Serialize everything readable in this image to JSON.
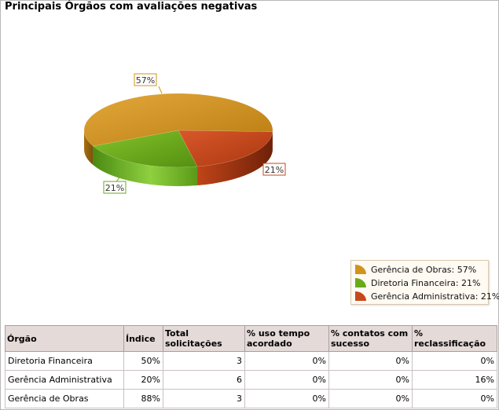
{
  "title": "Principais Órgãos com avaliações negativas",
  "chart_data": {
    "type": "pie",
    "style": "3d",
    "slices": [
      {
        "label": "Gerência de Obras",
        "value": 57,
        "display": "57%",
        "color": "#d0931c",
        "legend": "Gerência de Obras: 57%"
      },
      {
        "label": "Diretoria Financeira",
        "value": 21,
        "display": "21%",
        "color": "#6aaa1a",
        "legend": "Diretoria Financeira: 21%"
      },
      {
        "label": "Gerência Administrativa",
        "value": 21,
        "display": "21%",
        "color": "#c8471a",
        "legend": "Gerência Administrativa: 21%"
      }
    ],
    "legend_position": "bottom-right"
  },
  "table": {
    "headers": [
      "Órgão",
      "Índice",
      "Total solicitações",
      "% uso tempo acordado",
      "% contatos com sucesso",
      "% reclassificação"
    ],
    "rows": [
      [
        "Diretoria Financeira",
        "50%",
        "3",
        "0%",
        "0%",
        "0%"
      ],
      [
        "Gerência Administrativa",
        "20%",
        "6",
        "0%",
        "0%",
        "16%"
      ],
      [
        "Gerência de Obras",
        "88%",
        "3",
        "0%",
        "0%",
        "0%"
      ]
    ]
  }
}
